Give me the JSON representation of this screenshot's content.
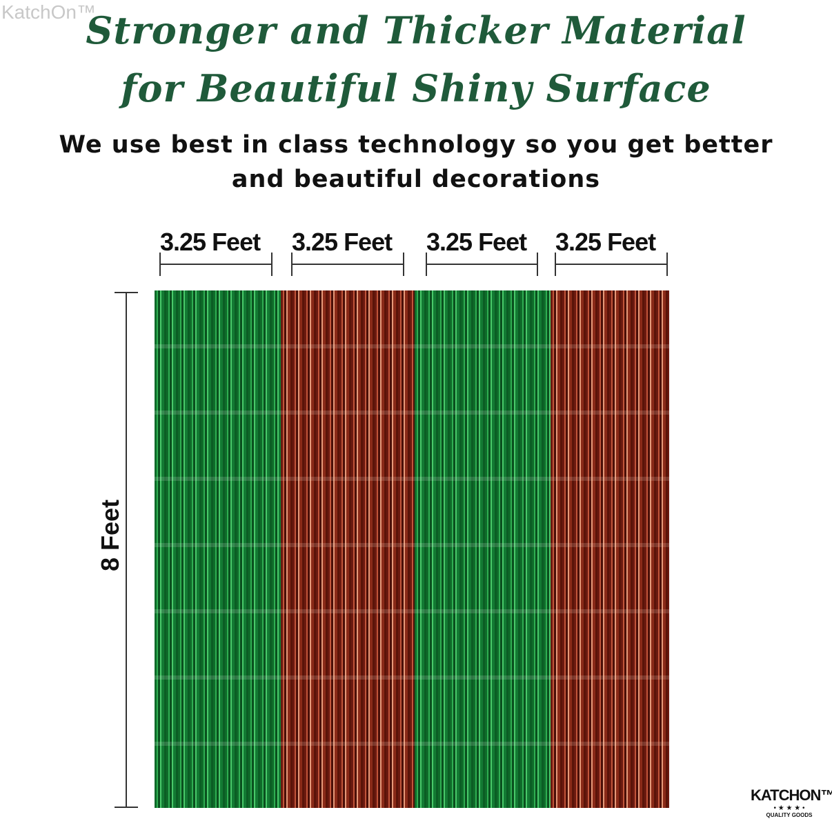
{
  "watermark": "KatchOn™",
  "headline": {
    "line1": "Stronger and Thicker Material",
    "line2": "for Beautiful Shiny Surface"
  },
  "subheadline": {
    "line1": "We use best in class technology so you get better",
    "line2": "and beautiful decorations"
  },
  "panel_widths": [
    "3.25 Feet",
    "3.25 Feet",
    "3.25 Feet",
    "3.25 Feet"
  ],
  "height_label": "8 Feet",
  "panels": [
    {
      "color": "green",
      "hex": "#1a8a3a"
    },
    {
      "color": "copper",
      "hex": "#a33a22"
    },
    {
      "color": "green",
      "hex": "#1a8a3a"
    },
    {
      "color": "copper",
      "hex": "#a33a22"
    }
  ],
  "logo": {
    "name": "KATCHON™",
    "stars": "• ★ ★ ★ •",
    "tagline": "QUALITY GOODS"
  },
  "colors": {
    "headline": "#1f5a3a",
    "text": "#111111"
  }
}
